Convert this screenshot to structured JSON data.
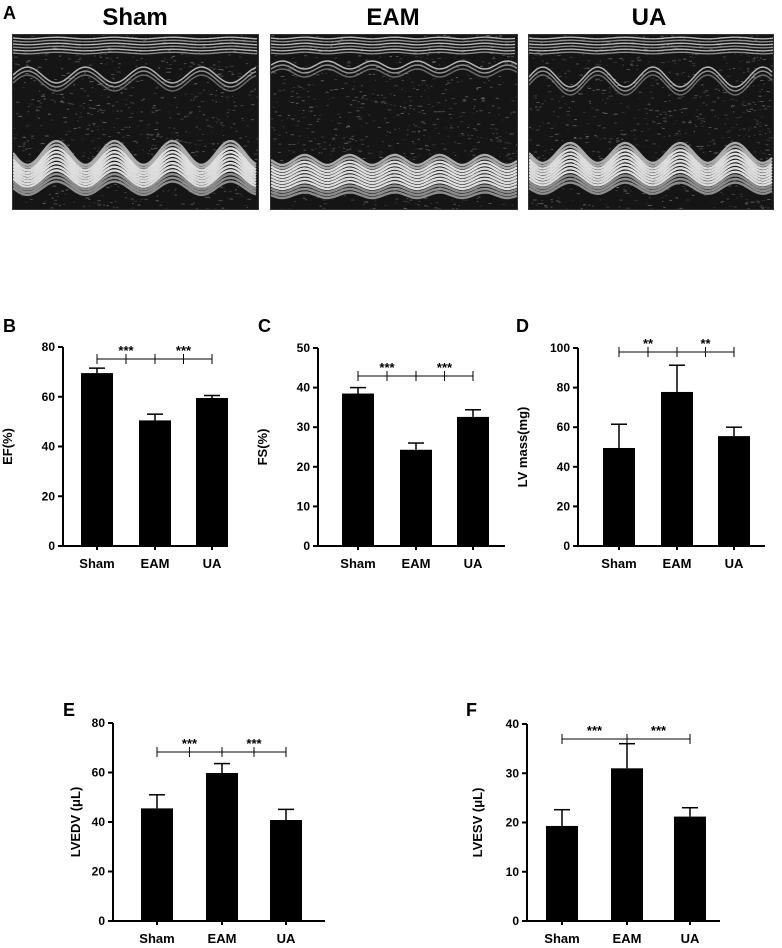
{
  "panel_a": {
    "letter": "A",
    "titles": [
      "Sham",
      "EAM",
      "UA"
    ]
  },
  "chart_data": [
    {
      "id": "B",
      "letter": "B",
      "type": "bar",
      "categories": [
        "Sham",
        "EAM",
        "UA"
      ],
      "values": [
        69.5,
        50.5,
        59.5
      ],
      "errors": [
        2.0,
        2.5,
        1.0
      ],
      "ylabel": "EF(%)",
      "ylim": [
        0,
        80
      ],
      "yticks": [
        0,
        20,
        40,
        60,
        80
      ],
      "significance": [
        {
          "from": 0,
          "to": 1,
          "label": "***"
        },
        {
          "from": 1,
          "to": 2,
          "label": "***"
        }
      ]
    },
    {
      "id": "C",
      "letter": "C",
      "type": "bar",
      "categories": [
        "Sham",
        "EAM",
        "UA"
      ],
      "values": [
        38.5,
        24.3,
        32.6
      ],
      "errors": [
        1.5,
        1.7,
        1.8
      ],
      "ylabel": "FS(%)",
      "ylim": [
        0,
        50
      ],
      "yticks": [
        0,
        10,
        20,
        30,
        40,
        50
      ],
      "significance": [
        {
          "from": 0,
          "to": 1,
          "label": "***"
        },
        {
          "from": 1,
          "to": 2,
          "label": "***"
        }
      ]
    },
    {
      "id": "D",
      "letter": "D",
      "type": "bar",
      "categories": [
        "Sham",
        "EAM",
        "UA"
      ],
      "values": [
        49.5,
        77.8,
        55.5
      ],
      "errors": [
        12.0,
        13.5,
        4.5
      ],
      "ylabel": "LV mass(mg)",
      "ylim": [
        0,
        100
      ],
      "yticks": [
        0,
        20,
        40,
        60,
        80,
        100
      ],
      "significance": [
        {
          "from": 0,
          "to": 1,
          "label": "**"
        },
        {
          "from": 1,
          "to": 2,
          "label": "**"
        }
      ]
    },
    {
      "id": "E",
      "letter": "E",
      "type": "bar",
      "categories": [
        "Sham",
        "EAM",
        "UA"
      ],
      "values": [
        45.5,
        59.8,
        40.8
      ],
      "errors": [
        5.5,
        3.8,
        4.3
      ],
      "ylabel": "LVEDV (μL)",
      "ylim": [
        0,
        80
      ],
      "yticks": [
        0,
        20,
        40,
        60,
        80
      ],
      "significance": [
        {
          "from": 0,
          "to": 1,
          "label": "***"
        },
        {
          "from": 1,
          "to": 2,
          "label": "***"
        }
      ]
    },
    {
      "id": "F",
      "letter": "F",
      "type": "bar",
      "categories": [
        "Sham",
        "EAM",
        "UA"
      ],
      "values": [
        19.3,
        31.0,
        21.2
      ],
      "errors": [
        3.3,
        5.0,
        1.8
      ],
      "ylabel": "LVESV (μL)",
      "ylim": [
        0,
        40
      ],
      "yticks": [
        0,
        10,
        20,
        30,
        40
      ],
      "significance": [
        {
          "from": 0,
          "to": 2,
          "label": "***",
          "split": 1
        }
      ]
    }
  ]
}
